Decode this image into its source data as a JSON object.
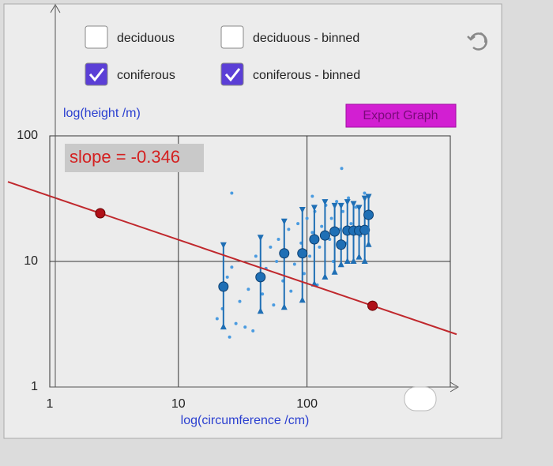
{
  "controls": [
    {
      "label": "deciduous",
      "checked": false
    },
    {
      "label": "deciduous - binned",
      "checked": false
    },
    {
      "label": "coniferous",
      "checked": true
    },
    {
      "label": "coniferous - binned",
      "checked": true
    }
  ],
  "export_button": "Export Graph",
  "chart_data": {
    "type": "scatter",
    "log_scale": true,
    "grid": true,
    "x_label": "log(circumference /cm)",
    "y_label": "log(height /m)",
    "annotation": "slope = -0.346",
    "xlim": [
      1,
      1300
    ],
    "ylim": [
      1,
      100
    ],
    "xticks": [
      1,
      10,
      100
    ],
    "yticks": [
      1,
      10,
      100
    ],
    "series": [
      {
        "name": "coniferous",
        "kind": "raw",
        "color": "#4a9be0",
        "x": [
          20,
          22,
          25,
          28,
          30,
          33,
          26,
          24,
          35,
          38,
          40,
          45,
          48,
          52,
          55,
          58,
          60,
          65,
          70,
          72,
          75,
          80,
          85,
          90,
          95,
          100,
          105,
          110,
          115,
          120,
          125,
          130,
          140,
          150,
          155,
          160,
          170,
          180,
          190,
          200,
          210,
          220,
          240,
          260,
          280,
          300,
          26,
          186,
          110
        ],
        "values": [
          3.5,
          4.2,
          2.5,
          3.2,
          4.8,
          3.0,
          9,
          7.5,
          6,
          2.8,
          11,
          5.5,
          8.8,
          13,
          4.5,
          10,
          15,
          7,
          12,
          18,
          5.8,
          9.5,
          20,
          14,
          8,
          22,
          11,
          17,
          25,
          6.5,
          13,
          19,
          28,
          15,
          22,
          10,
          30,
          18,
          25,
          14,
          32,
          20,
          27,
          16,
          35,
          22,
          35,
          55,
          33
        ]
      },
      {
        "name": "coniferous - binned",
        "kind": "binned",
        "color": "#1f6fb5",
        "x": [
          22.4,
          43.5,
          66.5,
          92,
          114,
          138,
          164,
          184,
          206,
          230,
          254,
          281,
          301
        ],
        "values": [
          6.3,
          7.5,
          11.6,
          11.6,
          15,
          16.1,
          17.3,
          13.6,
          17.6,
          17.6,
          17.6,
          17.8,
          23.5
        ],
        "low": [
          3.0,
          4.0,
          4.3,
          4.9,
          6.6,
          7.5,
          8.2,
          9.4,
          10,
          10,
          10.8,
          10,
          13.6
        ],
        "high": [
          13.6,
          15.6,
          21,
          26,
          27,
          30,
          28,
          28,
          30,
          29,
          27,
          32,
          33
        ]
      }
    ],
    "fit": {
      "color": "#c0282d",
      "x": [
        2.47,
        323
      ],
      "values": [
        24.2,
        4.44
      ]
    }
  }
}
